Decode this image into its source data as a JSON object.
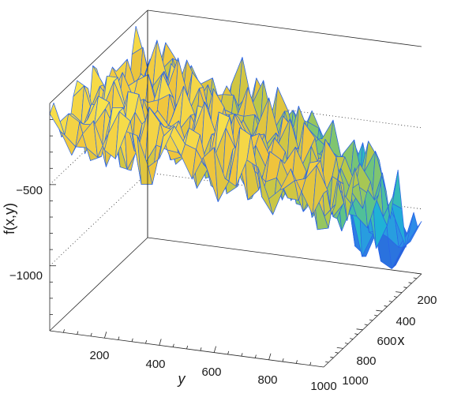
{
  "chart_data": {
    "type": "surface",
    "title": "",
    "xlabel": "x",
    "ylabel": "y",
    "zlabel": "f(x,y)",
    "x_ticks": [
      200,
      400,
      600,
      800,
      1000
    ],
    "y_ticks": [
      200,
      400,
      600,
      800,
      1000
    ],
    "z_ticks": [
      -1000,
      -500
    ],
    "x_tick_labels": [
      "200",
      "400",
      "600",
      "800",
      "1000"
    ],
    "y_tick_labels": [
      "200",
      "400",
      "600",
      "800",
      "1000"
    ],
    "z_tick_labels": [
      "−1000",
      "−500"
    ],
    "xlim": [
      0,
      1000
    ],
    "ylim": [
      0,
      1000
    ],
    "zlim": [
      -1400,
      0
    ],
    "grid": true,
    "colormap": "parula",
    "edge_color": "#2a66e8",
    "colormap_stops": [
      "#2450d0",
      "#2f8ae8",
      "#1fb6d4",
      "#5cc38a",
      "#b5c84a",
      "#f0c43c",
      "#f9e64f"
    ],
    "grid_points": 26,
    "minimum_value": -1340,
    "minimum_location": [
      900,
      900
    ]
  }
}
